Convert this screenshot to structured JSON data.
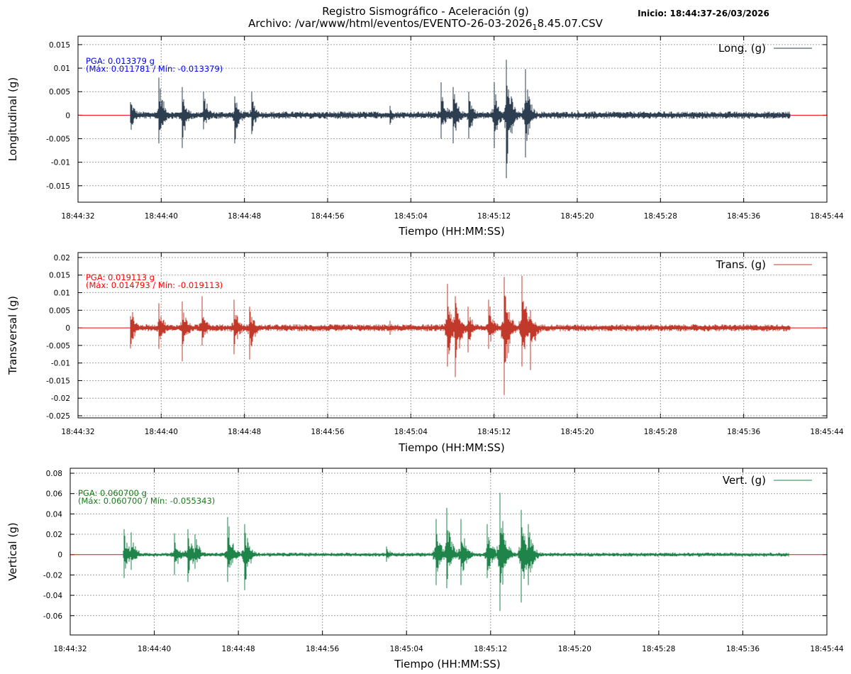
{
  "header": {
    "title_line1": "Registro Sismográfico - Aceleración (g)",
    "file_prefix": "Archivo: /var/www/html/eventos/EVENTO-26-03-2026",
    "file_subscript": "1",
    "file_suffix": "8.45.07.CSV",
    "inicio": "Inicio: 18:44:37-26/03/2026"
  },
  "chart_data": [
    {
      "type": "line",
      "ylabel": "Longitudinal (g)",
      "xlabel": "Tiempo (HH:MM:SS)",
      "legend": "Long. (g)",
      "legend_position": "top-right",
      "color": "#2c3e50",
      "zero_line_color": "#ff0000",
      "annotation_color": "#0000ff",
      "pga_text": "PGA: 0.013379 g",
      "maxmin_text": "(Máx: 0.011781 / Mín: -0.013379)",
      "grid": true,
      "xlim": [
        "18:44:32",
        "18:45:44"
      ],
      "xticks": [
        "18:44:32",
        "18:44:40",
        "18:44:48",
        "18:44:56",
        "18:45:04",
        "18:45:12",
        "18:45:20",
        "18:45:28",
        "18:45:36",
        "18:45:44"
      ],
      "ylim": [
        -0.0185,
        0.0168
      ],
      "yticks": [
        "0.015",
        "0.01",
        "0.005",
        "0",
        "-0.005",
        "-0.01",
        "-0.015"
      ],
      "start": "18:44:37.0",
      "end": "18:45:40.5",
      "noise": 0.0008,
      "peaks": [
        {
          "t": "18:44:37.0",
          "max": 0.0045,
          "min": -0.004
        },
        {
          "t": "18:44:39.8",
          "max": 0.008,
          "min": -0.006
        },
        {
          "t": "18:44:42.0",
          "max": 0.006,
          "min": -0.007
        },
        {
          "t": "18:44:44.1",
          "max": 0.005,
          "min": -0.003
        },
        {
          "t": "18:44:47.1",
          "max": 0.004,
          "min": -0.006
        },
        {
          "t": "18:44:48.7",
          "max": 0.005,
          "min": -0.004
        },
        {
          "t": "18:45:02.0",
          "max": 0.002,
          "min": -0.002
        },
        {
          "t": "18:45:06.9",
          "max": 0.007,
          "min": -0.005
        },
        {
          "t": "18:45:08.1",
          "max": 0.006,
          "min": -0.006
        },
        {
          "t": "18:45:09.6",
          "max": 0.005,
          "min": -0.005
        },
        {
          "t": "18:45:12.0",
          "max": 0.007,
          "min": -0.007
        },
        {
          "t": "18:45:13.2",
          "max": 0.011781,
          "min": -0.013379
        },
        {
          "t": "18:45:15.0",
          "max": 0.0098,
          "min": -0.009
        },
        {
          "t": "18:45:20.1",
          "max": 0.001,
          "min": -0.001
        }
      ]
    },
    {
      "type": "line",
      "ylabel": "Transversal (g)",
      "xlabel": "Tiempo (HH:MM:SS)",
      "legend": "Trans. (g)",
      "legend_position": "top-right",
      "color": "#c0392b",
      "zero_line_color": "#ff0000",
      "annotation_color": "#ff0000",
      "pga_text": "PGA: 0.019113 g",
      "maxmin_text": "(Máx: 0.014793 / Mín: -0.019113)",
      "grid": true,
      "xlim": [
        "18:44:32",
        "18:45:44"
      ],
      "xticks": [
        "18:44:32",
        "18:44:40",
        "18:44:48",
        "18:44:56",
        "18:45:04",
        "18:45:12",
        "18:45:20",
        "18:45:28",
        "18:45:36",
        "18:45:44"
      ],
      "ylim": [
        -0.0256,
        0.0214
      ],
      "yticks": [
        "0.02",
        "0.015",
        "0.01",
        "0.005",
        "0",
        "-0.005",
        "-0.01",
        "-0.015",
        "-0.02",
        "-0.025"
      ],
      "start": "18:44:37.0",
      "end": "18:45:40.5",
      "noise": 0.001,
      "peaks": [
        {
          "t": "18:44:37.0",
          "max": 0.008,
          "min": -0.0075
        },
        {
          "t": "18:44:39.8",
          "max": 0.007,
          "min": -0.006
        },
        {
          "t": "18:44:42.0",
          "max": 0.0075,
          "min": -0.0095
        },
        {
          "t": "18:44:43.9",
          "max": 0.009,
          "min": -0.005
        },
        {
          "t": "18:44:47.0",
          "max": 0.008,
          "min": -0.0075
        },
        {
          "t": "18:44:48.5",
          "max": 0.006,
          "min": -0.009
        },
        {
          "t": "18:45:02.0",
          "max": 0.002,
          "min": -0.002
        },
        {
          "t": "18:45:07.5",
          "max": 0.0125,
          "min": -0.011
        },
        {
          "t": "18:45:08.3",
          "max": 0.009,
          "min": -0.014
        },
        {
          "t": "18:45:09.5",
          "max": 0.006,
          "min": -0.007
        },
        {
          "t": "18:45:11.5",
          "max": 0.008,
          "min": -0.006
        },
        {
          "t": "18:45:13.0",
          "max": 0.0145,
          "min": -0.019113
        },
        {
          "t": "18:45:14.7",
          "max": 0.014793,
          "min": -0.011
        },
        {
          "t": "18:45:15.5",
          "max": 0.005,
          "min": -0.012
        }
      ]
    },
    {
      "type": "line",
      "ylabel": "Vertical (g)",
      "xlabel": "Tiempo (HH:MM:SS)",
      "legend": "Vert. (g)",
      "legend_position": "top-right",
      "color": "#1e8449",
      "zero_line_color": "#ff0000",
      "annotation_color": "#1a7a1a",
      "pga_text": "PGA: 0.060700 g",
      "maxmin_text": "(Máx: 0.060700 / Mín: -0.055343)",
      "grid": true,
      "xlim": [
        "18:44:32",
        "18:45:44"
      ],
      "xticks": [
        "18:44:32",
        "18:44:40",
        "18:44:48",
        "18:44:56",
        "18:45:04",
        "18:45:12",
        "18:45:20",
        "18:45:28",
        "18:45:36",
        "18:45:44"
      ],
      "ylim": [
        -0.079,
        0.0849
      ],
      "yticks": [
        "0.08",
        "0.06",
        "0.04",
        "0.02",
        "0",
        "-0.02",
        "-0.04",
        "-0.06"
      ],
      "start": "18:44:37.0",
      "end": "18:45:40.4",
      "noise": 0.002,
      "peaks": [
        {
          "t": "18:44:37.1",
          "max": 0.025,
          "min": -0.023
        },
        {
          "t": "18:44:37.8",
          "max": 0.022,
          "min": -0.015
        },
        {
          "t": "18:44:41.9",
          "max": 0.021,
          "min": -0.02
        },
        {
          "t": "18:44:43.2",
          "max": 0.025,
          "min": -0.027
        },
        {
          "t": "18:44:43.9",
          "max": 0.02,
          "min": -0.014
        },
        {
          "t": "18:44:47.0",
          "max": 0.037,
          "min": -0.027
        },
        {
          "t": "18:44:48.6",
          "max": 0.03,
          "min": -0.035
        },
        {
          "t": "18:45:02.1",
          "max": 0.008,
          "min": -0.007
        },
        {
          "t": "18:45:06.8",
          "max": 0.035,
          "min": -0.03
        },
        {
          "t": "18:45:07.8",
          "max": 0.046,
          "min": -0.033
        },
        {
          "t": "18:45:09.2",
          "max": 0.035,
          "min": -0.03
        },
        {
          "t": "18:45:11.7",
          "max": 0.03,
          "min": -0.023
        },
        {
          "t": "18:45:12.9",
          "max": 0.0607,
          "min": -0.055343
        },
        {
          "t": "18:45:14.9",
          "max": 0.044,
          "min": -0.047
        },
        {
          "t": "18:45:15.6",
          "max": 0.03,
          "min": -0.03
        }
      ]
    }
  ]
}
